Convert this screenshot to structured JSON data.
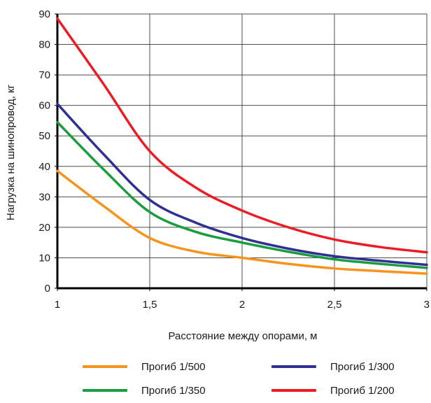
{
  "chart_data": {
    "type": "line",
    "xlabel": "Расстояние между опорами, м",
    "ylabel": "Нагрузка на шинопровод,  кг",
    "xlim": [
      1,
      3
    ],
    "ylim": [
      0,
      90
    ],
    "x_ticks": [
      1,
      1.5,
      2,
      2.5,
      3
    ],
    "x_tick_labels": [
      "1",
      "1,5",
      "2",
      "2,5",
      "3"
    ],
    "y_ticks": [
      0,
      10,
      20,
      30,
      40,
      50,
      60,
      70,
      80,
      90
    ],
    "y_tick_labels": [
      "0",
      "10",
      "20",
      "30",
      "40",
      "50",
      "60",
      "70",
      "80",
      "90"
    ],
    "grid": true,
    "legend_position": "bottom",
    "series": [
      {
        "name": "Прогиб 1/500",
        "color": "#f7941d",
        "x": [
          1,
          1.25,
          1.5,
          1.75,
          2,
          2.25,
          2.5,
          2.75,
          3
        ],
        "y": [
          38.5,
          27,
          16.5,
          12,
          10,
          8,
          6.5,
          5.6,
          4.8
        ]
      },
      {
        "name": "Прогиб 1/300",
        "color": "#2e3192",
        "x": [
          1,
          1.25,
          1.5,
          1.75,
          2,
          2.25,
          2.5,
          2.75,
          3
        ],
        "y": [
          60.5,
          44,
          29,
          21.5,
          16.5,
          13,
          10.5,
          9,
          7.7
        ]
      },
      {
        "name": "Прогиб 1/350",
        "color": "#1a9c3f",
        "x": [
          1,
          1.25,
          1.5,
          1.75,
          2,
          2.25,
          2.5,
          2.75,
          3
        ],
        "y": [
          54.5,
          39,
          25,
          18.5,
          15,
          12,
          9.5,
          8,
          6.7
        ]
      },
      {
        "name": "Прогиб 1/200",
        "color": "#ed1c24",
        "x": [
          1,
          1.25,
          1.5,
          1.75,
          2,
          2.25,
          2.5,
          2.75,
          3
        ],
        "y": [
          88.5,
          67,
          45,
          33,
          25.5,
          20,
          16,
          13.5,
          11.8
        ]
      }
    ]
  }
}
